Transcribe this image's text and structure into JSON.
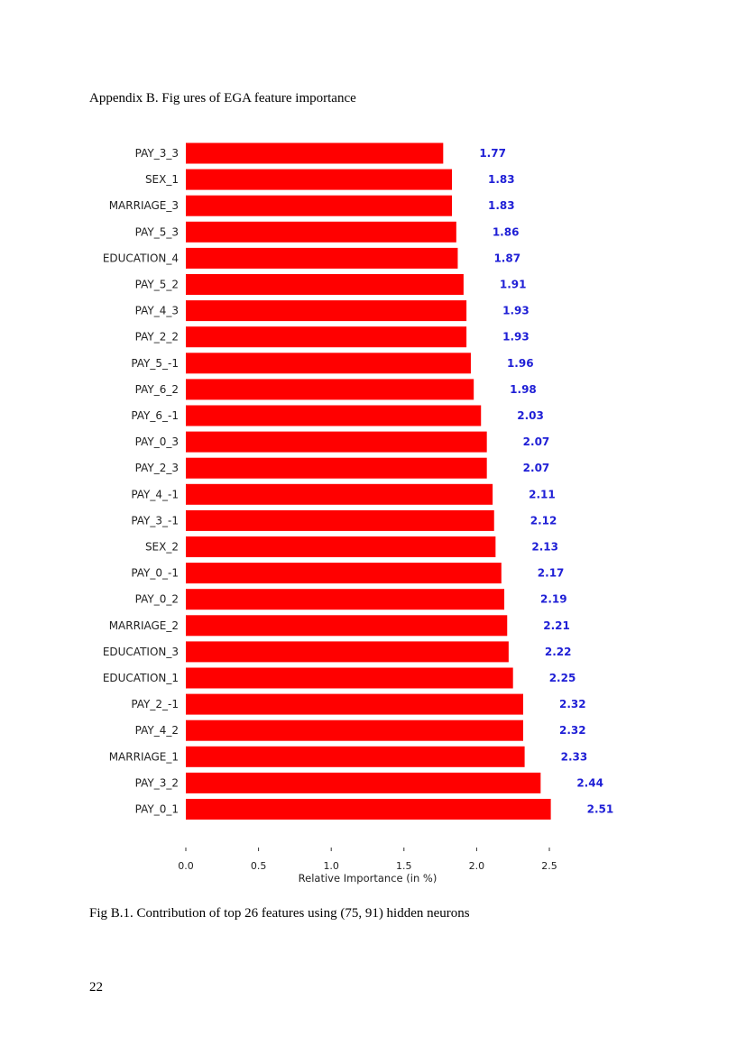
{
  "document": {
    "heading": "Appendix B. Fig ures of EGA feature importance",
    "caption": "Fig B.1. Contribution of top 26 features using (75, 91) hidden neurons",
    "page_number": "22"
  },
  "chart_data": {
    "type": "bar",
    "orientation": "horizontal",
    "title": "",
    "xlabel": "Relative Importance (in %)",
    "ylabel": "",
    "xlim": [
      0,
      2.8
    ],
    "xticks": [
      0.0,
      0.5,
      1.0,
      1.5,
      2.0,
      2.5
    ],
    "xtick_labels": [
      "0.0",
      "0.5",
      "1.0",
      "1.5",
      "2.0",
      "2.5"
    ],
    "grid": false,
    "bar_color": "#ff0000",
    "value_label_color": "#1f1fd6",
    "categories": [
      "PAY_3_3",
      "SEX_1",
      "MARRIAGE_3",
      "PAY_5_3",
      "EDUCATION_4",
      "PAY_5_2",
      "PAY_4_3",
      "PAY_2_2",
      "PAY_5_-1",
      "PAY_6_2",
      "PAY_6_-1",
      "PAY_0_3",
      "PAY_2_3",
      "PAY_4_-1",
      "PAY_3_-1",
      "SEX_2",
      "PAY_0_-1",
      "PAY_0_2",
      "MARRIAGE_2",
      "EDUCATION_3",
      "EDUCATION_1",
      "PAY_2_-1",
      "PAY_4_2",
      "MARRIAGE_1",
      "PAY_3_2",
      "PAY_0_1"
    ],
    "values": [
      1.77,
      1.83,
      1.83,
      1.86,
      1.87,
      1.91,
      1.93,
      1.93,
      1.96,
      1.98,
      2.03,
      2.07,
      2.07,
      2.11,
      2.12,
      2.13,
      2.17,
      2.19,
      2.21,
      2.22,
      2.25,
      2.32,
      2.32,
      2.33,
      2.44,
      2.51
    ],
    "value_labels": [
      "1.77",
      "1.83",
      "1.83",
      "1.86",
      "1.87",
      "1.91",
      "1.93",
      "1.93",
      "1.96",
      "1.98",
      "2.03",
      "2.07",
      "2.07",
      "2.11",
      "2.12",
      "2.13",
      "2.17",
      "2.19",
      "2.21",
      "2.22",
      "2.25",
      "2.32",
      "2.32",
      "2.33",
      "2.44",
      "2.51"
    ]
  }
}
